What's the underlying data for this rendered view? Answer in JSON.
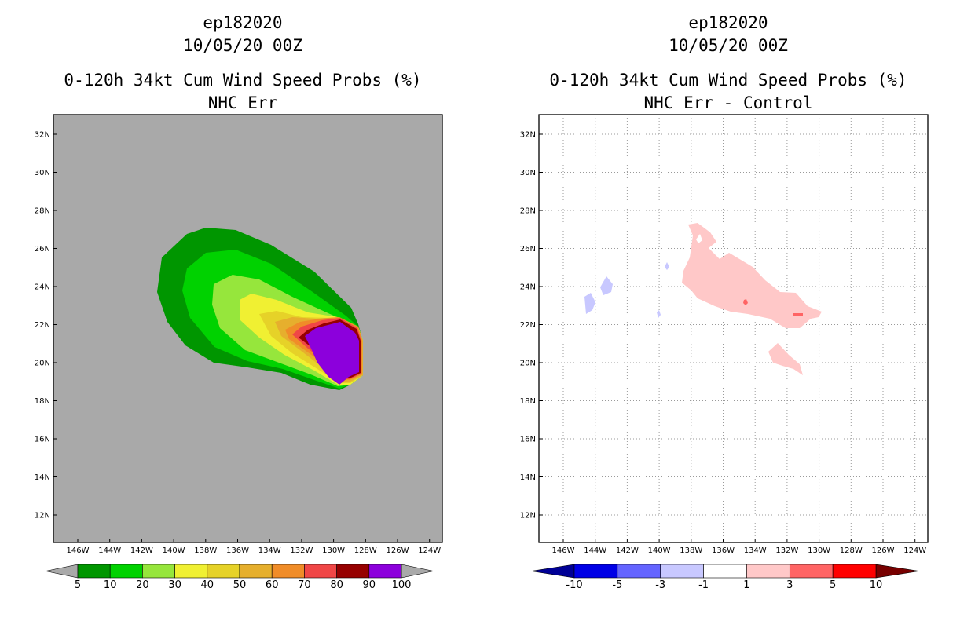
{
  "left_panel": {
    "storm_id": "ep182020",
    "datetime": "10/05/20 00Z",
    "product": "0-120h 34kt Cum Wind Speed Probs (%)",
    "subtitle": "NHC Err",
    "background_color": "#a9a9a9",
    "colorbar": {
      "labels": [
        "5",
        "10",
        "20",
        "30",
        "40",
        "50",
        "60",
        "70",
        "80",
        "90",
        "100"
      ],
      "colors": [
        "#009600",
        "#00d200",
        "#96e63c",
        "#f0f032",
        "#e6d228",
        "#e6af2d",
        "#f08c28",
        "#f04646",
        "#960000",
        "#8c00dc"
      ],
      "low_arrow_color": "#a9a9a9",
      "high_arrow_color": "#a9a9a9"
    }
  },
  "right_panel": {
    "storm_id": "ep182020",
    "datetime": "10/05/20 00Z",
    "product": "0-120h 34kt Cum Wind Speed Probs (%)",
    "subtitle": "NHC Err - Control",
    "background_color": "#ffffff",
    "colorbar": {
      "labels": [
        "-10",
        "-5",
        "-3",
        "-1",
        "1",
        "3",
        "5",
        "10"
      ],
      "colors": [
        "#0000e6",
        "#6464ff",
        "#c8c8ff",
        "#ffffff",
        "#ffc8c8",
        "#ff6464",
        "#ff0000"
      ],
      "low_arrow_color": "#000096",
      "high_arrow_color": "#780000"
    }
  },
  "axes": {
    "lat_labels": [
      "32N",
      "30N",
      "28N",
      "26N",
      "24N",
      "22N",
      "20N",
      "18N",
      "16N",
      "14N",
      "12N"
    ],
    "lon_labels": [
      "146W",
      "144W",
      "142W",
      "140W",
      "138W",
      "136W",
      "134W",
      "132W",
      "130W",
      "128W",
      "126W",
      "124W"
    ]
  },
  "icons": {
    "map_frame": "map-frame",
    "probability_contours": "contour-shading",
    "difference_contours": "difference-shading"
  }
}
